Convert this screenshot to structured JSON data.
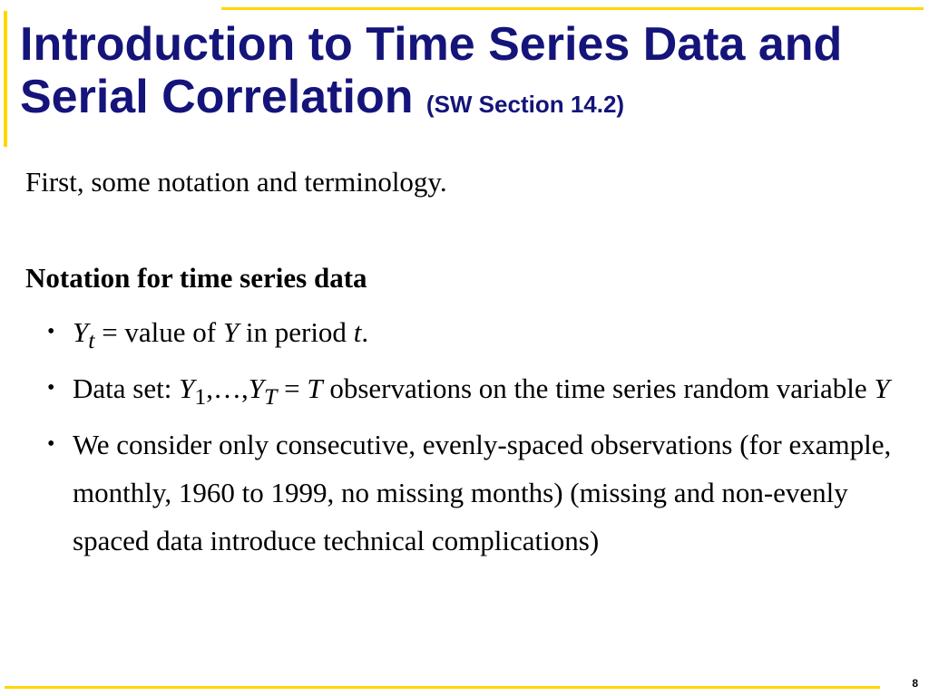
{
  "slide": {
    "title_main": "Introduction to Time Series Data and Serial Correlation",
    "title_section": "(SW Section 14.2)",
    "page_number": "8",
    "accent_color": "#ffd700",
    "title_color": "#14147a"
  },
  "content": {
    "intro": "First, some notation and terminology.",
    "heading": "Notation for time series data",
    "bullet_symbol": "•",
    "bullet1": {
      "var": "Y",
      "sub": "t",
      "text1": " = value of ",
      "var2": "Y",
      "text2": " in period ",
      "var3": "t",
      "text3": "."
    },
    "bullet2": {
      "prefix": "Data set:  ",
      "var1": "Y",
      "sub1": "1",
      "sep": ",…,",
      "var2": "Y",
      "sub2": "T",
      "eq": " = ",
      "var3": "T",
      "text": " observations on the time series random variable ",
      "var4": "Y"
    },
    "bullet3": "We consider only consecutive, evenly-spaced observations (for example, monthly, 1960 to 1999, no missing months) (missing and non-evenly spaced data introduce technical complications)"
  }
}
